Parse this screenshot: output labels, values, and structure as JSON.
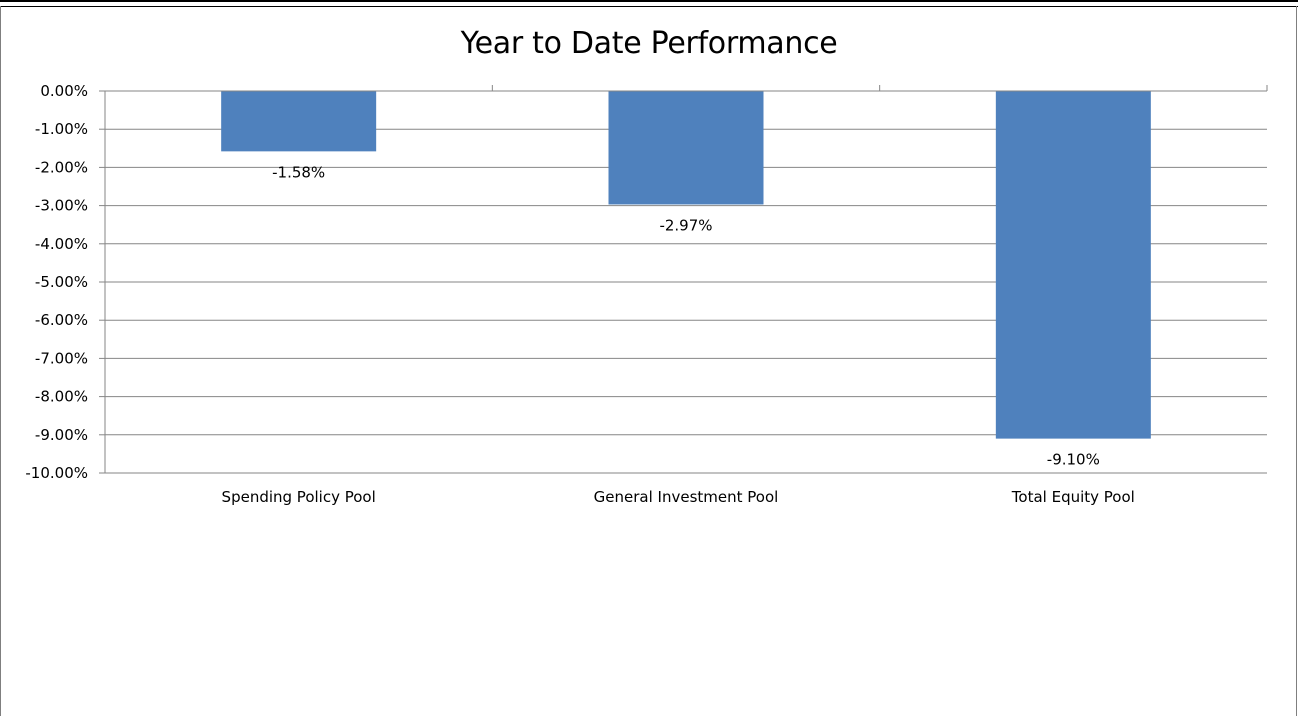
{
  "chart_data": {
    "type": "bar",
    "title": "Year to Date Performance",
    "xlabel": "",
    "ylabel": "",
    "categories": [
      "Spending Policy Pool",
      "General Investment Pool",
      "Total Equity Pool"
    ],
    "values": [
      -1.58,
      -2.97,
      -9.1
    ],
    "data_labels": [
      "-1.58%",
      "-2.97%",
      "-9.10%"
    ],
    "ylim": [
      -10,
      0
    ],
    "yticks": [
      0,
      -1,
      -2,
      -3,
      -4,
      -5,
      -6,
      -7,
      -8,
      -9,
      -10
    ],
    "ytick_labels": [
      "0.00%",
      "-1.00%",
      "-2.00%",
      "-3.00%",
      "-4.00%",
      "-5.00%",
      "-6.00%",
      "-7.00%",
      "-8.00%",
      "-9.00%",
      "-10.00%"
    ],
    "grid": true,
    "bar_color": "#4F81BD"
  }
}
